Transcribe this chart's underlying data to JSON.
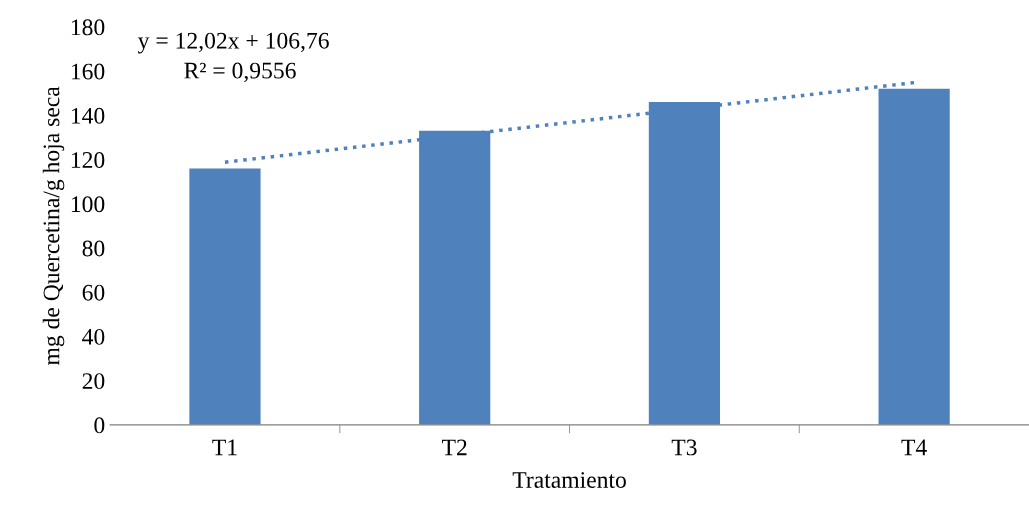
{
  "chart_data": {
    "type": "bar",
    "xlabel": "Tratamiento",
    "ylabel": "mg de Quercetina/g hoja seca",
    "categories": [
      "T1",
      "T2",
      "T3",
      "T4"
    ],
    "series": [
      {
        "color": "#4f81bd",
        "values": [
          116,
          133,
          146,
          152
        ]
      },
      {
        "type": "line",
        "color": "#4f81bd",
        "line_style": "dotted",
        "values": [
          118.8,
          130.8,
          142.8,
          154.8
        ]
      }
    ],
    "ylim": [
      0,
      180
    ],
    "yticks": [
      0,
      20,
      40,
      60,
      80,
      100,
      120,
      140,
      160,
      180
    ],
    "grid": false,
    "legend": false,
    "annotations": [
      "y = 12,02x + 106,76",
      "R² = 0,9556"
    ]
  }
}
